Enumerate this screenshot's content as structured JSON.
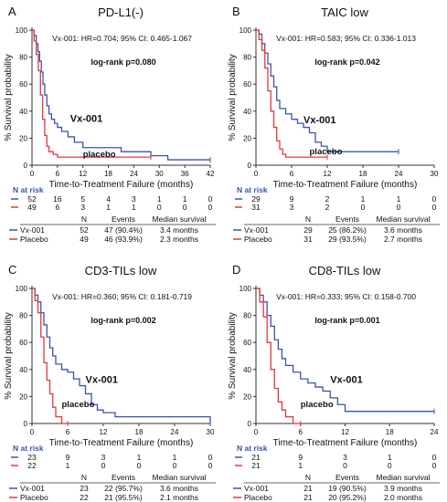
{
  "colors": {
    "vx": "#3b55a6",
    "placebo": "#e2383a",
    "axis": "#333333",
    "text": "#111111"
  },
  "common": {
    "ylabel": "% Survival probability",
    "xlabel": "Time-to-Treatment Failure (months)",
    "risk_title": "N at risk",
    "table_headers": [
      "N",
      "Events",
      "Median survival"
    ]
  },
  "chart_data": [
    {
      "letter": "A",
      "title": "PD-L1(-)",
      "type": "line",
      "hr_text": "Vx-001: HR=0.704; 95% CI: 0.465-1.067",
      "logrank_text": "log-rank p=0.080",
      "xticks": [
        "0",
        "6",
        "12",
        "18",
        "24",
        "30",
        "36",
        "42"
      ],
      "xlim": [
        0,
        42
      ],
      "ylim": [
        0,
        100
      ],
      "yticks": [
        "0",
        "20",
        "40",
        "60",
        "80",
        "100"
      ],
      "series": [
        {
          "name": "Vx-001",
          "label_text": "Vx-001",
          "x": [
            0,
            0.5,
            1,
            1.4,
            1.8,
            2.2,
            2.6,
            3,
            3.5,
            4,
            4.6,
            5.3,
            6,
            7,
            8.5,
            10,
            12,
            15,
            18,
            21,
            24,
            28,
            32,
            36,
            42
          ],
          "y": [
            100,
            96,
            90,
            84,
            77,
            69,
            60,
            52,
            44,
            38,
            34,
            31,
            28,
            25,
            21,
            17,
            13,
            13,
            13,
            10,
            10,
            7,
            4,
            4,
            4
          ]
        },
        {
          "name": "Placebo",
          "label_text": "placebo",
          "x": [
            0,
            0.5,
            1,
            1.5,
            2,
            2.5,
            3,
            3.5,
            4,
            5,
            6,
            8,
            12,
            20,
            28
          ],
          "y": [
            100,
            92,
            82,
            70,
            52,
            34,
            22,
            14,
            10,
            8,
            6,
            6,
            6,
            6,
            6
          ]
        }
      ],
      "risk": {
        "vx": [
          "52",
          "16",
          "5",
          "4",
          "3",
          "1",
          "1",
          "0"
        ],
        "placebo": [
          "49",
          "6",
          "3",
          "1",
          "1",
          "0",
          "0",
          "0"
        ]
      },
      "table": [
        [
          "Vx-001",
          "52",
          "47 (90.4%)",
          "3.4 months"
        ],
        [
          "Placebo",
          "49",
          "46 (93.9%)",
          "2.3 months"
        ]
      ]
    },
    {
      "letter": "B",
      "title": "TAIC low",
      "type": "line",
      "hr_text": "Vx-001: HR=0.583; 95% CI: 0.336-1.013",
      "logrank_text": "log-rank p=0.042",
      "xticks": [
        "0",
        "6",
        "12",
        "18",
        "24",
        "30"
      ],
      "xlim": [
        0,
        30
      ],
      "ylim": [
        0,
        100
      ],
      "yticks": [
        "0",
        "20",
        "40",
        "60",
        "80",
        "100"
      ],
      "series": [
        {
          "name": "Vx-001",
          "label_text": "Vx-001",
          "x": [
            0,
            0.5,
            1,
            1.5,
            2,
            2.5,
            3,
            3.5,
            4,
            5,
            6,
            7,
            8,
            9,
            10,
            11,
            12,
            14,
            24
          ],
          "y": [
            100,
            97,
            90,
            83,
            75,
            66,
            58,
            48,
            42,
            38,
            34,
            31,
            28,
            24,
            17,
            14,
            10,
            10,
            10
          ]
        },
        {
          "name": "Placebo",
          "label_text": "placebo",
          "x": [
            0,
            0.5,
            1,
            1.5,
            2,
            2.5,
            3,
            3.5,
            4,
            4.5,
            5,
            6,
            9,
            12
          ],
          "y": [
            100,
            93,
            85,
            72,
            55,
            40,
            28,
            18,
            12,
            8,
            6,
            6,
            6,
            6
          ]
        }
      ],
      "risk": {
        "vx": [
          "29",
          "9",
          "2",
          "1",
          "1",
          "0"
        ],
        "placebo": [
          "31",
          "3",
          "2",
          "0",
          "0",
          "0"
        ]
      },
      "table": [
        [
          "Vx-001",
          "29",
          "25 (86.2%)",
          "3.6 months"
        ],
        [
          "Placebo",
          "31",
          "29 (93.5%)",
          "2.7 months"
        ]
      ]
    },
    {
      "letter": "C",
      "title": "CD3-TILs low",
      "type": "line",
      "hr_text": "Vx-001: HR=0.360; 95% CI: 0.181-0.719",
      "logrank_text": "log-rank p=0.002",
      "xticks": [
        "0",
        "6",
        "12",
        "18",
        "24",
        "30"
      ],
      "xlim": [
        0,
        30
      ],
      "ylim": [
        0,
        100
      ],
      "yticks": [
        "0",
        "20",
        "40",
        "60",
        "80",
        "100"
      ],
      "series": [
        {
          "name": "Vx-001",
          "label_text": "Vx-001",
          "x": [
            0,
            0.5,
            1,
            1.5,
            2,
            2.5,
            3,
            3.5,
            4,
            5,
            6,
            7,
            8,
            9,
            10,
            11,
            12,
            14,
            16,
            24,
            30
          ],
          "y": [
            100,
            95,
            90,
            82,
            73,
            64,
            56,
            50,
            44,
            40,
            38,
            33,
            28,
            22,
            14,
            10,
            8,
            5,
            5,
            5,
            0
          ]
        },
        {
          "name": "Placebo",
          "label_text": "placebo",
          "x": [
            0,
            0.5,
            1,
            1.5,
            2,
            2.5,
            3,
            3.5,
            4,
            4.5,
            5,
            6
          ],
          "y": [
            100,
            91,
            82,
            64,
            45,
            32,
            22,
            12,
            5,
            5,
            0,
            0
          ]
        }
      ],
      "risk": {
        "vx": [
          "23",
          "9",
          "3",
          "1",
          "1",
          "0"
        ],
        "placebo": [
          "22",
          "1",
          "0",
          "0",
          "0",
          "0"
        ]
      },
      "table": [
        [
          "Vx-001",
          "23",
          "22 (95.7%)",
          "3.6 months"
        ],
        [
          "Placebo",
          "22",
          "21 (95.5%)",
          "2.1 months"
        ]
      ]
    },
    {
      "letter": "D",
      "title": "CD8-TILs low",
      "type": "line",
      "hr_text": "Vx-001: HR=0.333; 95% CI: 0.158-0.700",
      "logrank_text": "log-rank p=0.001",
      "xticks": [
        "0",
        "6",
        "12",
        "18",
        "24"
      ],
      "xlim": [
        0,
        24
      ],
      "ylim": [
        0,
        100
      ],
      "yticks": [
        "0",
        "20",
        "40",
        "60",
        "80",
        "100"
      ],
      "series": [
        {
          "name": "Vx-001",
          "label_text": "Vx-001",
          "x": [
            0,
            0.5,
            1,
            1.5,
            2,
            2.5,
            3,
            3.5,
            4,
            5,
            6,
            7,
            8,
            9,
            10,
            11,
            12,
            15,
            24
          ],
          "y": [
            100,
            95,
            90,
            80,
            72,
            62,
            55,
            48,
            43,
            38,
            33,
            30,
            27,
            24,
            19,
            14,
            9,
            9,
            9
          ]
        },
        {
          "name": "Placebo",
          "label_text": "placebo",
          "x": [
            0,
            0.5,
            1,
            1.5,
            2,
            2.5,
            3,
            3.5,
            4,
            4.5,
            5,
            6
          ],
          "y": [
            100,
            90,
            79,
            60,
            40,
            26,
            16,
            10,
            5,
            5,
            0,
            0
          ]
        }
      ],
      "risk": {
        "vx": [
          "21",
          "9",
          "3",
          "1",
          "0"
        ],
        "placebo": [
          "21",
          "1",
          "0",
          "0",
          "0"
        ]
      },
      "table": [
        [
          "Vx-001",
          "21",
          "19 (90.5%)",
          "3.9 months"
        ],
        [
          "Placebo",
          "21",
          "20 (95.2%)",
          "2.0 months"
        ]
      ]
    }
  ]
}
